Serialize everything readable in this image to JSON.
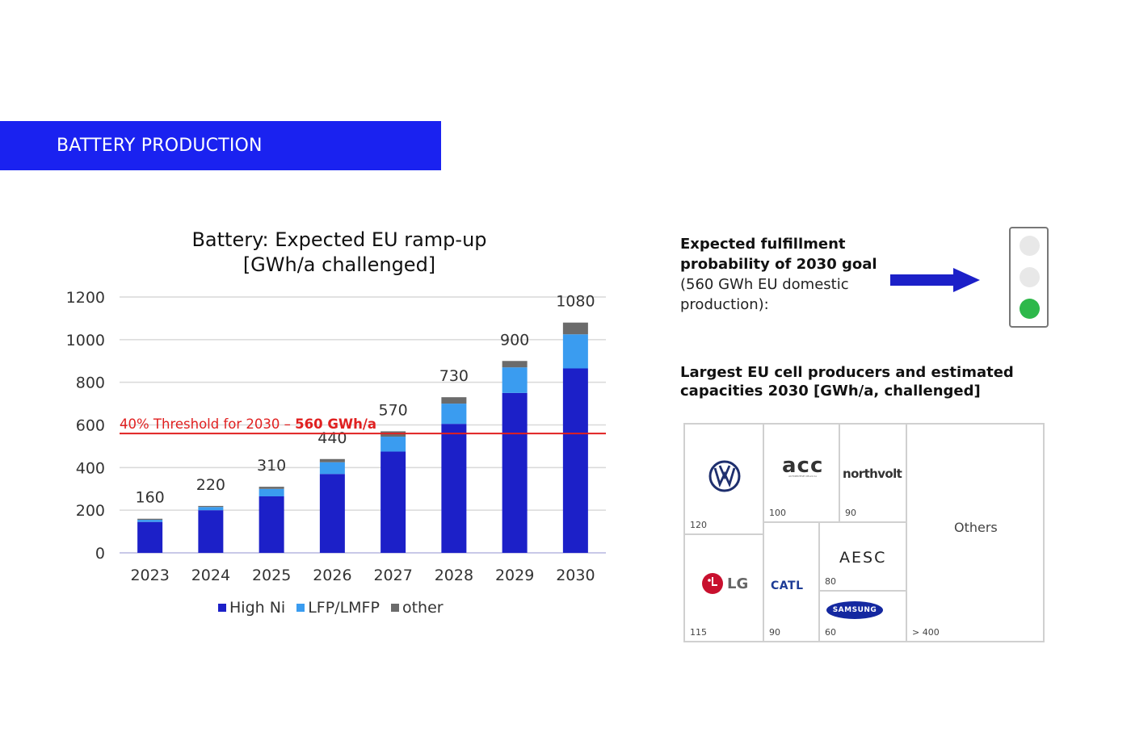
{
  "section": {
    "label": "BATTERY PRODUCTION",
    "color": "#1a22f0"
  },
  "chart_title": {
    "line1": "Battery: Expected EU ramp-up",
    "line2": "[GWh/a challenged]"
  },
  "chart_data": {
    "type": "bar",
    "stacked": true,
    "title": "Battery: Expected EU ramp-up [GWh/a challenged]",
    "categories": [
      "2023",
      "2024",
      "2025",
      "2026",
      "2027",
      "2028",
      "2029",
      "2030"
    ],
    "series": [
      {
        "name": "High Ni",
        "color": "#1c20c8",
        "values": [
          145,
          200,
          265,
          370,
          475,
          605,
          750,
          865
        ]
      },
      {
        "name": "LFP/LMFP",
        "color": "#3a9cf0",
        "values": [
          10,
          15,
          35,
          55,
          70,
          95,
          120,
          160
        ]
      },
      {
        "name": "other",
        "color": "#6b6b6b",
        "values": [
          5,
          5,
          10,
          15,
          25,
          30,
          30,
          55
        ]
      }
    ],
    "totals": [
      160,
      220,
      310,
      440,
      570,
      730,
      900,
      1080
    ],
    "y_ticks": [
      "0",
      "200",
      "400",
      "600",
      "800",
      "1000",
      "1200"
    ],
    "ylim": [
      0,
      1200
    ],
    "threshold": {
      "value": 560,
      "label_prefix": "40% Threshold for 2030 – ",
      "label_value": "560 GWh/a",
      "color": "#e02020"
    },
    "legend_position": "bottom"
  },
  "goal": {
    "line1": "Expected fulfillment",
    "line2": "probability of 2030 goal",
    "line3": "(560 GWh EU domestic",
    "line4": "production):",
    "light_colors": [
      "#e8e8e8",
      "#e8e8e8",
      "#2db84a"
    ]
  },
  "producers": {
    "title_line1": "Largest EU cell producers and estimated",
    "title_line2": "capacities 2030 [GWh/a, challenged]",
    "vw": {
      "capacity": "120",
      "logo": "vw-logo"
    },
    "acc": {
      "capacity": "100",
      "logo_text": "acc",
      "logo_sub": "AUTOMOTIVE CELLS Co"
    },
    "northvolt": {
      "capacity": "90",
      "logo_text": "northvolt"
    },
    "others": {
      "capacity": "> 400",
      "label": "Others"
    },
    "lg": {
      "capacity": "115",
      "logo_text": "LG"
    },
    "catl": {
      "capacity": "90",
      "logo_text": "CATL"
    },
    "aesc": {
      "capacity": "80",
      "logo_text": "AESC"
    },
    "samsung": {
      "capacity": "60",
      "logo_text": "SAMSUNG"
    }
  }
}
